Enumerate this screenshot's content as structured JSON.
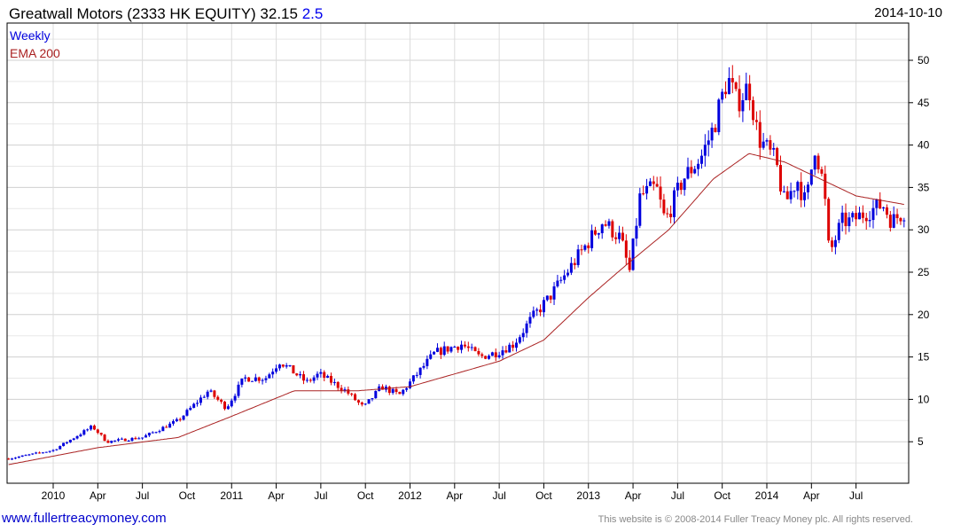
{
  "header": {
    "title": "Greatwall Motors (2333 HK EQUITY) 32.15",
    "change": "2.5",
    "date": "2014-10-10"
  },
  "footer": {
    "site": "www.fullertreacymoney.com",
    "copyright": "This website is © 2008-2014 Fuller Treacy Money plc. All rights reserved."
  },
  "chart_data": {
    "type": "candlestick",
    "title": "Greatwall Motors (2333 HK EQUITY) 32.15 2.5",
    "legend": [
      "Weekly",
      "EMA 200"
    ],
    "legend_placement": "top-left",
    "colors": {
      "up": "#0000dd",
      "down": "#dd0000",
      "ema": "#aa2222"
    },
    "ylim": [
      0,
      54
    ],
    "yticks": [
      5,
      10,
      15,
      20,
      25,
      30,
      35,
      40,
      45,
      50
    ],
    "xticks": [
      {
        "label": "2010",
        "t": 2010.0
      },
      {
        "label": "Apr",
        "t": 2010.25
      },
      {
        "label": "Jul",
        "t": 2010.5
      },
      {
        "label": "Oct",
        "t": 2010.75
      },
      {
        "label": "2011",
        "t": 2011.0
      },
      {
        "label": "Apr",
        "t": 2011.25
      },
      {
        "label": "Jul",
        "t": 2011.5
      },
      {
        "label": "Oct",
        "t": 2011.75
      },
      {
        "label": "2012",
        "t": 2012.0
      },
      {
        "label": "Apr",
        "t": 2012.25
      },
      {
        "label": "Jul",
        "t": 2012.5
      },
      {
        "label": "Oct",
        "t": 2012.75
      },
      {
        "label": "2013",
        "t": 2013.0
      },
      {
        "label": "Apr",
        "t": 2013.25
      },
      {
        "label": "Jul",
        "t": 2013.5
      },
      {
        "label": "Oct",
        "t": 2013.75
      },
      {
        "label": "2014",
        "t": 2014.0
      },
      {
        "label": "Apr",
        "t": 2014.25
      },
      {
        "label": "Jul",
        "t": 2014.5
      }
    ],
    "price_path": [
      [
        2009.75,
        3
      ],
      [
        2010.0,
        4
      ],
      [
        2010.22,
        6.8
      ],
      [
        2010.3,
        5
      ],
      [
        2010.5,
        5.5
      ],
      [
        2010.7,
        7.5
      ],
      [
        2010.87,
        11
      ],
      [
        2010.97,
        9
      ],
      [
        2011.07,
        12.5
      ],
      [
        2011.19,
        12.5
      ],
      [
        2011.27,
        14.5
      ],
      [
        2011.42,
        12
      ],
      [
        2011.49,
        13
      ],
      [
        2011.64,
        11
      ],
      [
        2011.74,
        9
      ],
      [
        2011.84,
        11.5
      ],
      [
        2011.94,
        10.5
      ],
      [
        2012.04,
        13
      ],
      [
        2012.14,
        15.5
      ],
      [
        2012.29,
        16.5
      ],
      [
        2012.39,
        15
      ],
      [
        2012.48,
        15.5
      ],
      [
        2012.58,
        16.5
      ],
      [
        2012.68,
        19.5
      ],
      [
        2012.78,
        22
      ],
      [
        2012.88,
        25
      ],
      [
        2012.98,
        28
      ],
      [
        2013.08,
        31
      ],
      [
        2013.18,
        29
      ],
      [
        2013.23,
        25
      ],
      [
        2013.29,
        34
      ],
      [
        2013.38,
        35
      ],
      [
        2013.43,
        31
      ],
      [
        2013.53,
        36
      ],
      [
        2013.63,
        38.5
      ],
      [
        2013.7,
        42
      ],
      [
        2013.78,
        48
      ],
      [
        2013.83,
        45
      ],
      [
        2013.9,
        47
      ],
      [
        2013.95,
        41
      ],
      [
        2014.05,
        38
      ],
      [
        2014.1,
        33
      ],
      [
        2014.17,
        36
      ],
      [
        2014.22,
        33
      ],
      [
        2014.27,
        40
      ],
      [
        2014.32,
        35
      ],
      [
        2014.35,
        27
      ],
      [
        2014.42,
        31
      ],
      [
        2014.47,
        31
      ],
      [
        2014.55,
        32
      ],
      [
        2014.65,
        33
      ],
      [
        2014.7,
        31
      ],
      [
        2014.77,
        32.15
      ]
    ],
    "ema200": [
      [
        2009.75,
        2.3
      ],
      [
        2010.25,
        4.3
      ],
      [
        2010.7,
        5.5
      ],
      [
        2011.0,
        8
      ],
      [
        2011.35,
        11
      ],
      [
        2011.7,
        11
      ],
      [
        2012.0,
        11.5
      ],
      [
        2012.5,
        14.5
      ],
      [
        2012.75,
        17
      ],
      [
        2013.0,
        22
      ],
      [
        2013.22,
        26
      ],
      [
        2013.45,
        30
      ],
      [
        2013.7,
        36
      ],
      [
        2013.9,
        39
      ],
      [
        2014.1,
        38
      ],
      [
        2014.3,
        36
      ],
      [
        2014.5,
        34
      ],
      [
        2014.77,
        33
      ]
    ]
  }
}
